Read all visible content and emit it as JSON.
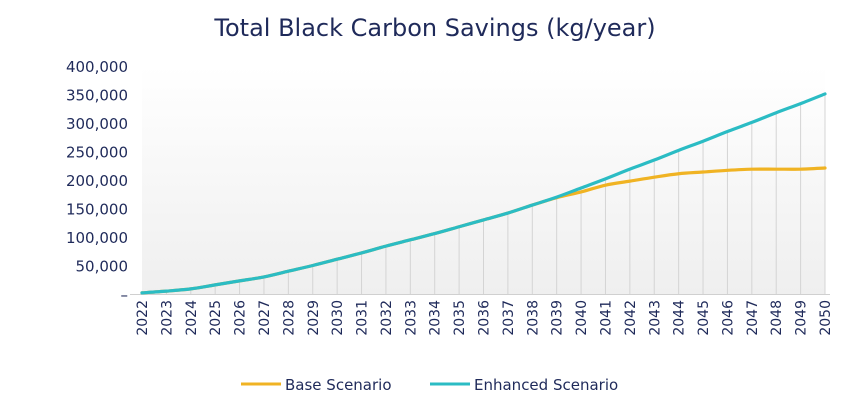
{
  "chart_data": {
    "type": "line",
    "title": "Total Black Carbon Savings (kg/year)",
    "xlabel": "",
    "ylabel": "",
    "ylim": [
      0,
      400000
    ],
    "y_ticks": [
      "–",
      "50,000",
      "100,000",
      "150,000",
      "200,000",
      "250,000",
      "300,000",
      "350,000",
      "400,000"
    ],
    "y_tick_values": [
      0,
      50000,
      100000,
      150000,
      200000,
      250000,
      300000,
      350000,
      400000
    ],
    "categories": [
      "2022",
      "2023",
      "2024",
      "2025",
      "2026",
      "2027",
      "2028",
      "2029",
      "2030",
      "2031",
      "2032",
      "2033",
      "2034",
      "2035",
      "2036",
      "2037",
      "2038",
      "2039",
      "2040",
      "2041",
      "2042",
      "2043",
      "2044",
      "2045",
      "2046",
      "2047",
      "2048",
      "2049",
      "2050"
    ],
    "grid": "vertical drop lines",
    "legend_position": "bottom",
    "series": [
      {
        "name": "Base Scenario",
        "color": "#f0b323",
        "values": [
          2000,
          5000,
          9000,
          16000,
          23000,
          30000,
          40000,
          50000,
          61000,
          72000,
          84000,
          95000,
          106000,
          118000,
          130000,
          142000,
          156000,
          169000,
          179000,
          191000,
          198000,
          205000,
          211000,
          214000,
          217000,
          219000,
          219000,
          219000,
          221000
        ]
      },
      {
        "name": "Enhanced Scenario",
        "color": "#2bbcc4",
        "values": [
          2000,
          5000,
          9000,
          16000,
          23000,
          30000,
          40000,
          50000,
          61000,
          72000,
          84000,
          95000,
          106000,
          118000,
          130000,
          142000,
          156000,
          170000,
          186000,
          202000,
          219000,
          235000,
          252000,
          268000,
          285000,
          301000,
          318000,
          334000,
          351000
        ]
      }
    ]
  }
}
